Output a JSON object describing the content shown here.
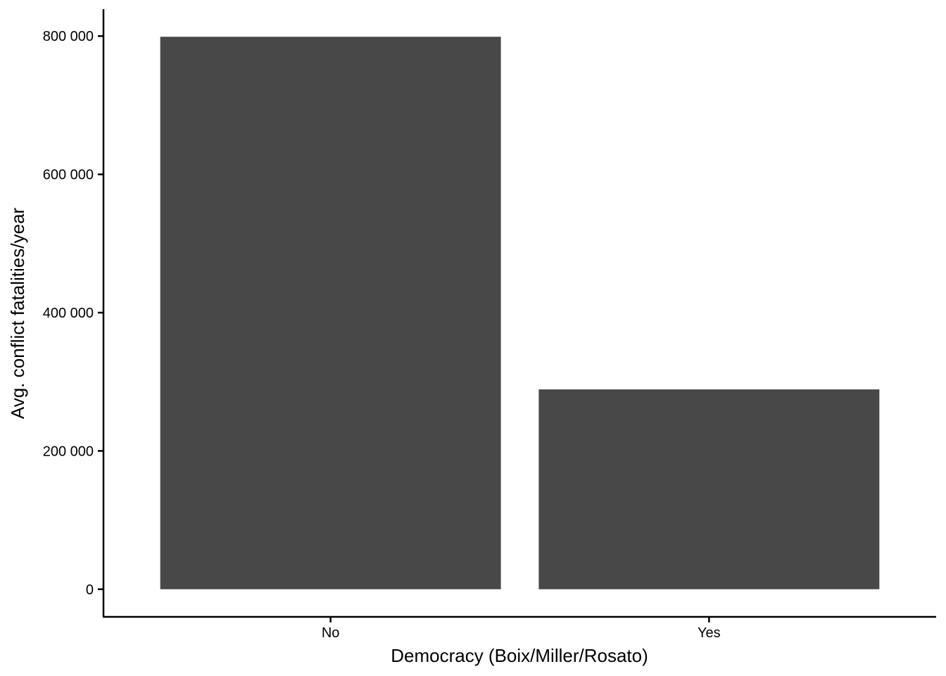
{
  "chart_data": {
    "type": "bar",
    "categories": [
      "No",
      "Yes"
    ],
    "values": [
      799000,
      289000
    ],
    "xlabel": "Democracy (Boix/Miller/Rosato)",
    "ylabel": "Avg. conflict fatalities/year",
    "yticks": [
      0,
      200000,
      400000,
      600000,
      800000
    ],
    "ytick_labels": [
      "0",
      "200 000",
      "400 000",
      "600 000",
      "800 000"
    ],
    "ylim": [
      -39950,
      838950
    ],
    "grid": false,
    "legend": "none",
    "bar_color": "#484848"
  }
}
